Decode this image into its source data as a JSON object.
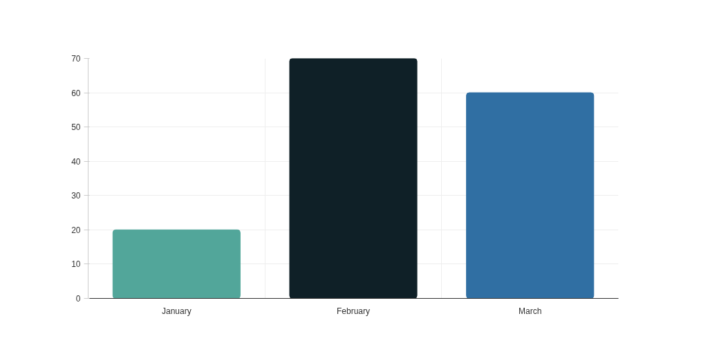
{
  "chart_data": {
    "type": "bar",
    "categories": [
      "January",
      "February",
      "March"
    ],
    "values": [
      20,
      70,
      60
    ],
    "colors": [
      "#52a69a",
      "#0f2027",
      "#306fa3"
    ],
    "ylim": [
      0,
      70
    ],
    "yticks": [
      0,
      10,
      20,
      30,
      40,
      50,
      60,
      70
    ],
    "grid": true
  }
}
